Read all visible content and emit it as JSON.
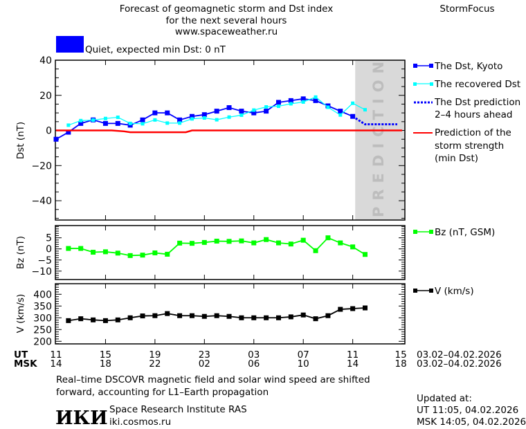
{
  "header": {
    "title_lines": [
      "Forecast of geomagnetic storm and Dst index",
      "for the next several hours",
      "www.spaceweather.ru"
    ],
    "brand": "StormFocus",
    "status_color": "#0000ff",
    "status_text": "Quiet, expected min Dst: 0 nT"
  },
  "legend": {
    "kyoto": "The Dst, Kyoto",
    "recovered": "The recovered Dst",
    "prediction": [
      "The Dst prediction",
      "2–4 hours ahead"
    ],
    "storm": [
      "Prediction of the",
      "storm strength",
      "(min Dst)"
    ],
    "bz": "Bz (nT, GSM)",
    "v": "V (km/s)"
  },
  "prediction_label": "PREDICTION",
  "x_axis": {
    "ut_label": "UT",
    "msk_label": "MSK",
    "ut_ticks": [
      "11",
      "15",
      "19",
      "23",
      "03",
      "07",
      "11",
      "15"
    ],
    "msk_ticks": [
      "14",
      "18",
      "22",
      "02",
      "06",
      "10",
      "14",
      "18"
    ],
    "date_range": "03.02–04.02.2026"
  },
  "chart_data": [
    {
      "type": "line",
      "ylabel": "Dst (nT)",
      "ylim": [
        -51,
        40
      ],
      "yticks": [
        "40",
        "20",
        "0",
        "−20",
        "−40"
      ],
      "ytick_values": [
        40,
        20,
        0,
        -20,
        -40
      ],
      "x_hours_from_start": "hours after 03.02 11 UT",
      "xlim": [
        0,
        28
      ],
      "prediction_zone_start": 24.2,
      "series": [
        {
          "name": "The Dst, Kyoto",
          "color": "#0000ff",
          "x": [
            0,
            1,
            2,
            3,
            4,
            5,
            6,
            7,
            8,
            9,
            10,
            11,
            12,
            13,
            14,
            15,
            16,
            17,
            18,
            19,
            20,
            21,
            22,
            23,
            24
          ],
          "values": [
            -5,
            -1,
            4,
            6,
            4,
            4,
            3,
            6,
            10,
            10,
            6,
            8,
            9,
            11,
            13,
            11,
            10,
            11,
            16,
            17,
            18,
            17,
            14,
            11,
            8
          ]
        },
        {
          "name": "The recovered Dst",
          "color": "#00ffff",
          "x": [
            1,
            2,
            3,
            4,
            5,
            6,
            7,
            8,
            9,
            10,
            11,
            12,
            13,
            14,
            15,
            16,
            17,
            18,
            19,
            20,
            21,
            22,
            23,
            24,
            25
          ],
          "values": [
            3,
            5.6,
            5.9,
            6.8,
            7.5,
            4,
            3.8,
            6,
            4.2,
            4.2,
            6.6,
            7.1,
            6.1,
            7.6,
            8.7,
            11.6,
            13.4,
            13.8,
            15.2,
            16.2,
            19,
            13.2,
            8.8,
            15.5,
            11.8
          ]
        },
        {
          "name": "The Dst prediction 2–4 hours ahead",
          "color": "#0000ff",
          "x": [
            24,
            25,
            26,
            27,
            27.6
          ],
          "values": [
            8,
            3.5,
            3.5,
            3.5,
            3.5
          ]
        },
        {
          "name": "Prediction of the storm strength (min Dst)",
          "color": "#ff0000",
          "x": [
            0,
            4.5,
            5.5,
            6,
            10.5,
            11,
            28
          ],
          "values": [
            0,
            0,
            -0.5,
            -1,
            -1,
            0,
            0
          ]
        }
      ]
    },
    {
      "type": "line",
      "ylabel": "Bz (nT)",
      "ylim": [
        -13.8,
        10.5
      ],
      "yticks": [
        "5",
        "0",
        "−5",
        "−10"
      ],
      "ytick_values": [
        5,
        0,
        -5,
        -10
      ],
      "series": [
        {
          "name": "Bz (nT, GSM)",
          "color": "#00ff00",
          "x": [
            1,
            2,
            3,
            4,
            5,
            6,
            7,
            8,
            9,
            10,
            11,
            12,
            13,
            14,
            15,
            16,
            17,
            18,
            19,
            20,
            21,
            22,
            23,
            24,
            25
          ],
          "values": [
            0.2,
            0.2,
            -1.5,
            -1.3,
            -1.9,
            -3,
            -2.8,
            -1.8,
            -2.4,
            2.6,
            2.5,
            2.9,
            3.5,
            3.4,
            3.6,
            2.7,
            4.2,
            2.7,
            2.2,
            3.9,
            -0.8,
            5,
            2.7,
            0.9,
            -2.5
          ]
        }
      ]
    },
    {
      "type": "line",
      "ylabel": "V (km/s)",
      "ylim": [
        189,
        445
      ],
      "yticks": [
        "400",
        "350",
        "300",
        "250",
        "200"
      ],
      "ytick_values": [
        400,
        350,
        300,
        250,
        200
      ],
      "series": [
        {
          "name": "V (km/s)",
          "color": "#000000",
          "x": [
            1,
            2,
            3,
            4,
            5,
            6,
            7,
            8,
            9,
            10,
            11,
            12,
            13,
            14,
            15,
            16,
            17,
            18,
            19,
            20,
            21,
            22,
            23,
            24,
            25
          ],
          "values": [
            288,
            296,
            291,
            288,
            291,
            300,
            308,
            309,
            318,
            309,
            309,
            306,
            309,
            306,
            300,
            300,
            300,
            300,
            304,
            312,
            296,
            309,
            336,
            339,
            342
          ]
        }
      ]
    }
  ],
  "footer": {
    "note_lines": [
      "Real–time DSCOVR magnetic field and solar wind speed are shifted",
      "forward, accounting for L1–Earth propagation"
    ],
    "logo_text": "ИКИ",
    "institute": "Space Research Institute RAS",
    "site": "iki.cosmos.ru",
    "updated_label": "Updated at:",
    "updated_ut": "UT   11:05, 04.02.2026",
    "updated_msk": "MSK 14:05, 04.02.2026"
  }
}
